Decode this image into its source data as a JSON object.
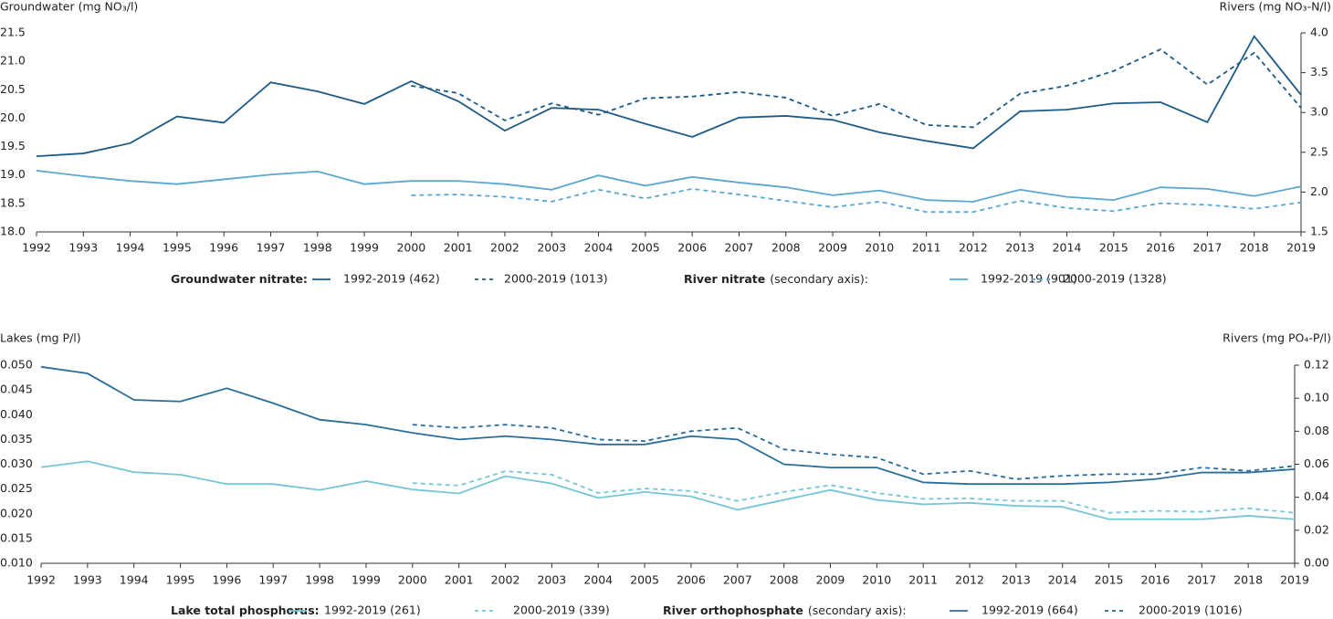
{
  "chart_data": [
    {
      "type": "line",
      "y_label": "Groundwater (mg NO₃/l)",
      "y2_label": "Rivers (mg NO₃-N/l)",
      "x": [
        1992,
        1993,
        1994,
        1995,
        1996,
        1997,
        1998,
        1999,
        2000,
        2001,
        2002,
        2003,
        2004,
        2005,
        2006,
        2007,
        2008,
        2009,
        2010,
        2011,
        2012,
        2013,
        2014,
        2015,
        2016,
        2017,
        2018,
        2019
      ],
      "xlim": [
        1992,
        2019
      ],
      "xticks": [
        1992,
        1993,
        1994,
        1995,
        1996,
        1997,
        1998,
        1999,
        2000,
        2001,
        2002,
        2003,
        2004,
        2005,
        2006,
        2007,
        2008,
        2009,
        2010,
        2011,
        2012,
        2013,
        2014,
        2015,
        2016,
        2017,
        2018,
        2019
      ],
      "ylim": [
        18.0,
        21.5
      ],
      "yticks": [
        {
          "value": 18,
          "label": "18.0"
        },
        18.5,
        {
          "value": 19,
          "label": "19.0"
        },
        19.5,
        {
          "value": 20,
          "label": "20.0"
        },
        20.5,
        {
          "value": 21,
          "label": "21.0"
        },
        21.5
      ],
      "y2lim": [
        1.5,
        4.0
      ],
      "y2ticks": [
        1.5,
        {
          "value": 2,
          "label": "2.0"
        },
        2.5,
        {
          "value": 3,
          "label": "3.0"
        },
        3.5,
        {
          "value": 4,
          "label": "4.0"
        }
      ],
      "legend_groups": [
        {
          "label": "Groundwater nitrate:"
        },
        {
          "label": "River nitrate",
          "note": "(secondary axis):"
        }
      ],
      "series": [
        {
          "name": "1992-2019 (462)",
          "color": "#1d5a84",
          "dash": "solid",
          "values": [
            19.33,
            19.38,
            19.56,
            20.03,
            19.92,
            20.63,
            20.47,
            20.25,
            20.65,
            20.3,
            19.78,
            20.18,
            20.15,
            19.9,
            19.67,
            20.01,
            20.04,
            19.97,
            19.75,
            19.6,
            19.47,
            20.12,
            20.15,
            20.26,
            20.28,
            19.93,
            21.44,
            20.41
          ]
        },
        {
          "name": "2000-2019 (1013)",
          "color": "#1d5a84",
          "dash": "dashed",
          "values": [
            null,
            null,
            null,
            null,
            null,
            null,
            null,
            null,
            20.57,
            20.44,
            19.96,
            20.26,
            20.06,
            20.35,
            20.38,
            20.46,
            20.36,
            20.04,
            20.25,
            19.88,
            19.84,
            20.43,
            20.57,
            20.83,
            21.21,
            20.59,
            21.15,
            20.18
          ]
        },
        {
          "name": "1992-2019 (901)",
          "color": "#5aa8d0",
          "dash": "solid",
          "axis": "y2",
          "values": [
            2.27,
            2.2,
            2.14,
            2.1,
            2.16,
            2.22,
            2.26,
            2.1,
            2.14,
            2.14,
            2.1,
            2.03,
            2.21,
            2.08,
            2.19,
            2.12,
            2.06,
            1.96,
            2.02,
            1.9,
            1.88,
            2.03,
            1.94,
            1.9,
            2.06,
            2.04,
            1.95,
            2.07
          ]
        },
        {
          "name": "2000-2019 (1328)",
          "color": "#5aa8d0",
          "dash": "dashed",
          "axis": "y2",
          "values": [
            null,
            null,
            null,
            null,
            null,
            null,
            null,
            null,
            1.96,
            1.97,
            1.94,
            1.88,
            2.03,
            1.92,
            2.04,
            1.97,
            1.89,
            1.81,
            1.88,
            1.75,
            1.75,
            1.89,
            1.8,
            1.76,
            1.86,
            1.84,
            1.79,
            1.87
          ]
        }
      ]
    },
    {
      "type": "line",
      "y_label": "Lakes (mg P/l)",
      "y2_label": "Rivers (mg PO₄-P/l)",
      "x": [
        1992,
        1993,
        1994,
        1995,
        1996,
        1997,
        1998,
        1999,
        2000,
        2001,
        2002,
        2003,
        2004,
        2005,
        2006,
        2007,
        2008,
        2009,
        2010,
        2011,
        2012,
        2013,
        2014,
        2015,
        2016,
        2017,
        2018,
        2019
      ],
      "xlim": [
        1992,
        2019
      ],
      "xticks": [
        1992,
        1993,
        1994,
        1995,
        1996,
        1997,
        1998,
        1999,
        2000,
        2001,
        2002,
        2003,
        2004,
        2005,
        2006,
        2007,
        2008,
        2009,
        2010,
        2011,
        2012,
        2013,
        2014,
        2015,
        2016,
        2017,
        2018,
        2019
      ],
      "ylim": [
        0.01,
        0.05
      ],
      "yticks": [
        {
          "value": 0.01,
          "label": "0.010"
        },
        0.015,
        {
          "value": 0.02,
          "label": "0.020"
        },
        0.025,
        {
          "value": 0.03,
          "label": "0.030"
        },
        0.035,
        {
          "value": 0.04,
          "label": "0.040"
        },
        0.045,
        {
          "value": 0.05,
          "label": "0.050"
        }
      ],
      "y2lim": [
        0,
        0.12
      ],
      "y2ticks": [
        {
          "value": 0,
          "label": "0.00"
        },
        {
          "value": 0.02,
          "label": "0.02"
        },
        {
          "value": 0.04,
          "label": "0.04"
        },
        {
          "value": 0.06,
          "label": "0.06"
        },
        {
          "value": 0.08,
          "label": "0.08"
        },
        {
          "value": 0.1,
          "label": "0.10"
        },
        {
          "value": 0.12,
          "label": "0.12"
        }
      ],
      "legend_groups": [
        {
          "label": "Lake total phosphorus:"
        },
        {
          "label": "River orthophosphate",
          "note": "(secondary axis):"
        }
      ],
      "series": [
        {
          "name": "1992-2019 (261)",
          "color": "#75c6d8",
          "dash": "solid",
          "values": [
            0.0294,
            0.0306,
            0.0284,
            0.0279,
            0.026,
            0.026,
            0.0248,
            0.0266,
            0.0249,
            0.0241,
            0.0276,
            0.0261,
            0.0232,
            0.0244,
            0.0235,
            0.0208,
            0.0228,
            0.0248,
            0.0228,
            0.0219,
            0.0222,
            0.0216,
            0.0214,
            0.0189,
            0.0189,
            0.0189,
            0.0196,
            0.0189
          ]
        },
        {
          "name": "2000-2019 (339)",
          "color": "#75c6d8",
          "dash": "dashed",
          "values": [
            null,
            null,
            null,
            null,
            null,
            null,
            null,
            null,
            0.0262,
            0.0257,
            0.0286,
            0.0279,
            0.0242,
            0.0251,
            0.0246,
            0.0226,
            0.0244,
            0.0258,
            0.0242,
            0.023,
            0.0231,
            0.0226,
            0.0226,
            0.0202,
            0.0206,
            0.0204,
            0.0211,
            0.0202
          ]
        },
        {
          "name": "1992-2019 (664)",
          "color": "#2a6d99",
          "dash": "solid",
          "axis": "y2",
          "values": [
            0.119,
            0.115,
            0.099,
            0.098,
            0.106,
            0.097,
            0.087,
            0.084,
            0.079,
            0.075,
            0.077,
            0.075,
            0.072,
            0.072,
            0.077,
            0.075,
            0.06,
            0.058,
            0.058,
            0.049,
            0.048,
            0.048,
            0.048,
            0.049,
            0.051,
            0.055,
            0.055,
            0.057
          ]
        },
        {
          "name": "2000-2019 (1016)",
          "color": "#2a6d99",
          "dash": "dashed",
          "axis": "y2",
          "values": [
            null,
            null,
            null,
            null,
            null,
            null,
            null,
            null,
            0.084,
            0.082,
            0.084,
            0.082,
            0.075,
            0.074,
            0.08,
            0.082,
            0.069,
            0.066,
            0.064,
            0.054,
            0.056,
            0.051,
            0.053,
            0.054,
            0.054,
            0.058,
            0.056,
            0.059
          ]
        }
      ]
    }
  ]
}
